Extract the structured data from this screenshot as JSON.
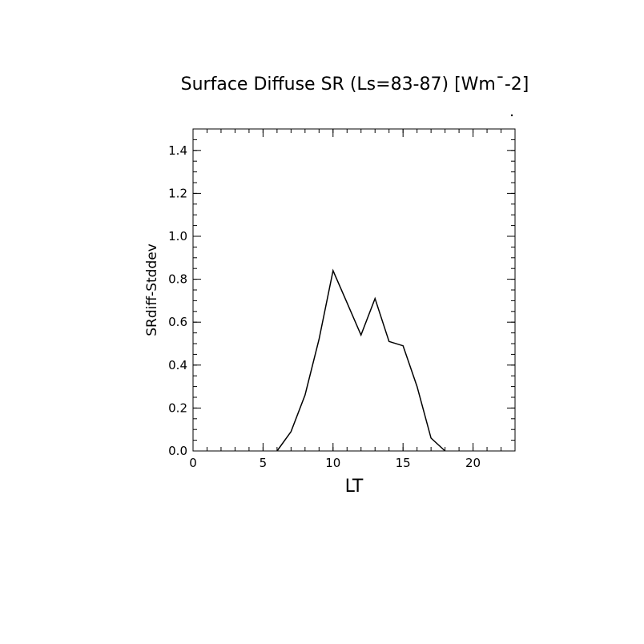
{
  "chart_data": {
    "type": "line",
    "title": "Surface Diffuse SR (Ls=83-87) [Wm¯-2]",
    "xlabel": "LT",
    "ylabel": "SRdiff-Stddev",
    "xlim": [
      0,
      23
    ],
    "ylim": [
      0,
      1.5
    ],
    "x_ticks": [
      "0",
      "5",
      "10",
      "15",
      "20"
    ],
    "y_ticks": [
      "0.0",
      "0.2",
      "0.4",
      "0.6",
      "0.8",
      "1.0",
      "1.2",
      "1.4"
    ],
    "grid": false,
    "series": [
      {
        "x": [
          6,
          7,
          8,
          9,
          10,
          11,
          12,
          13,
          14,
          15,
          16,
          17,
          18
        ],
        "y": [
          0.0,
          0.09,
          0.26,
          0.52,
          0.84,
          0.69,
          0.54,
          0.71,
          0.51,
          0.49,
          0.3,
          0.06,
          0.0
        ]
      }
    ]
  }
}
